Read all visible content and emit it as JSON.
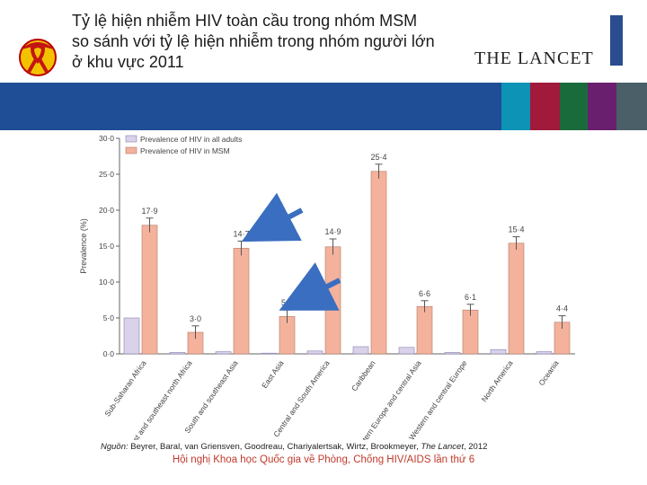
{
  "header": {
    "title_lines": [
      "Tỷ lệ hiện nhiễm HIV toàn cầu trong nhóm MSM",
      "so sánh với tỷ lệ hiện nhiễm trong nhóm người lớn",
      "ở khu vực 2011"
    ],
    "journal": "THE LANCET"
  },
  "colors": {
    "band_blue": "#1f4e96",
    "band_teal": "#0d93b6",
    "band_red": "#a11a3c",
    "band_green": "#1a6b3c",
    "band_purple": "#6a1f6e",
    "band_slate": "#4a5f68",
    "adults_bar": "#d9d2ea",
    "msm_bar": "#f4b29c",
    "arrow": "#3a6ec0"
  },
  "chart_data": {
    "type": "bar",
    "categories": [
      "Sub-Saharan Africa",
      "Middle East and southeast north Africa",
      "South and southeast Asia",
      "East Asia",
      "Central and South America",
      "Caribbean",
      "Eastern Europe and central Asia",
      "Western and central Europe",
      "North America",
      "Oceania"
    ],
    "series": [
      {
        "name": "Prevalence of HIV in all adults",
        "values": [
          5.0,
          0.2,
          0.3,
          0.1,
          0.4,
          1.0,
          0.9,
          0.2,
          0.6,
          0.3
        ]
      },
      {
        "name": "Prevalence of HIV in MSM",
        "values": [
          17.9,
          3.0,
          14.7,
          5.2,
          14.9,
          25.4,
          6.6,
          6.1,
          15.4,
          4.4
        ],
        "labels": [
          "17·9",
          "3·0",
          "14·7",
          "5·2",
          "14·9",
          "25·4",
          "6·6",
          "6·1",
          "15·4",
          "4·4"
        ],
        "errors": [
          1.0,
          0.9,
          1.0,
          0.9,
          1.1,
          1.0,
          0.8,
          0.8,
          0.9,
          0.9
        ]
      }
    ],
    "ylabel": "Prevalence (%)",
    "yticks": [
      "0·0",
      "5·0",
      "10·0",
      "15·0",
      "20·0",
      "25·0",
      "30·0"
    ],
    "ytick_values": [
      0,
      5,
      10,
      15,
      20,
      25,
      30
    ],
    "ylim": [
      0,
      30
    ],
    "legend": "top-left",
    "annotation_arrows": [
      {
        "points_to_category": "South and southeast Asia",
        "series": "MSM"
      },
      {
        "points_to_category": "East Asia",
        "series": "MSM"
      }
    ]
  },
  "footer": {
    "source_label": "Nguồn:",
    "source_text": "Beyrer, Baral, van Griensven, Goodreau, Chariyalertsak, Wirtz, Brookmeyer,",
    "source_journal": "The Lancet",
    "source_year": ", 2012",
    "conference": "Hội nghị Khoa học Quốc gia về Phòng, Chống HIV/AIDS lần thứ 6"
  }
}
